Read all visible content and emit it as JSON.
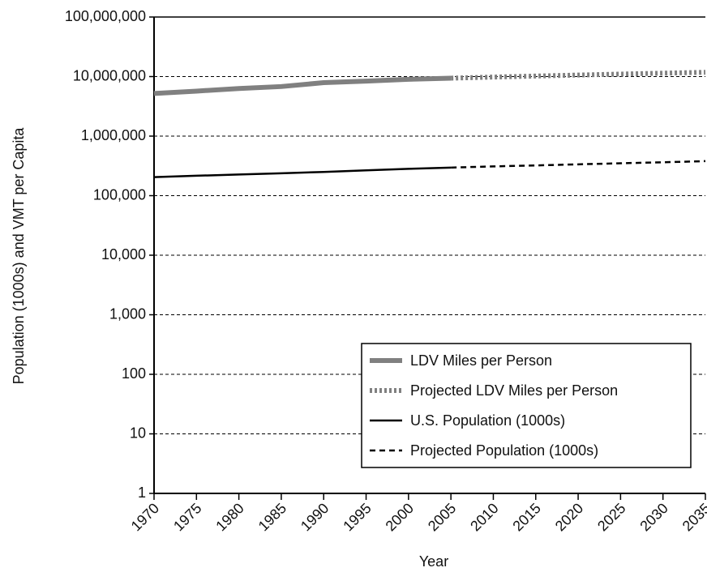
{
  "chart_data": {
    "type": "line",
    "x_label": "Year",
    "y_label": "Population (1000s) and VMT per Capita",
    "x": [
      1970,
      1975,
      1980,
      1985,
      1990,
      1995,
      2000,
      2005,
      2010,
      2015,
      2020,
      2025,
      2030,
      2035
    ],
    "series": [
      {
        "name": "LDV Miles per Person",
        "color": "#808080",
        "dash": "solid",
        "width": 6,
        "values": [
          5200000,
          5700000,
          6300000,
          6800000,
          7900000,
          8400000,
          9000000,
          9400000,
          null,
          null,
          null,
          null,
          null,
          null
        ]
      },
      {
        "name": "Projected LDV Miles per Person",
        "color": "#808080",
        "dash": "dotted",
        "width": 6,
        "values": [
          null,
          null,
          null,
          null,
          null,
          null,
          null,
          9400000,
          9800000,
          10200000,
          10600000,
          11000000,
          11400000,
          11800000
        ]
      },
      {
        "name": "U.S. Population (1000s)",
        "color": "#000000",
        "dash": "solid",
        "width": 2.5,
        "values": [
          205000,
          216000,
          227000,
          238000,
          250000,
          266000,
          282000,
          296000,
          null,
          null,
          null,
          null,
          null,
          null
        ]
      },
      {
        "name": "Projected Population (1000s)",
        "color": "#000000",
        "dash": "dashed",
        "width": 2.5,
        "values": [
          null,
          null,
          null,
          null,
          null,
          null,
          null,
          296000,
          310000,
          322000,
          336000,
          350000,
          364000,
          380000
        ]
      }
    ],
    "xlim": [
      1970,
      2035
    ],
    "xticks": [
      1970,
      1975,
      1980,
      1985,
      1990,
      1995,
      2000,
      2005,
      2010,
      2015,
      2020,
      2025,
      2030,
      2035
    ],
    "ylim": [
      1,
      100000000
    ],
    "yticks": [
      1,
      10,
      100,
      {
        "value": 1000,
        "label": "1,000"
      },
      {
        "value": 10000,
        "label": "10,000"
      },
      {
        "value": 100000,
        "label": "100,000"
      },
      {
        "value": 1000000,
        "label": "1,000,000"
      },
      {
        "value": 10000000,
        "label": "10,000,000"
      },
      {
        "value": 100000000,
        "label": "100,000,000"
      }
    ],
    "y_scale": "log",
    "grid": true,
    "legend": "lower right"
  }
}
